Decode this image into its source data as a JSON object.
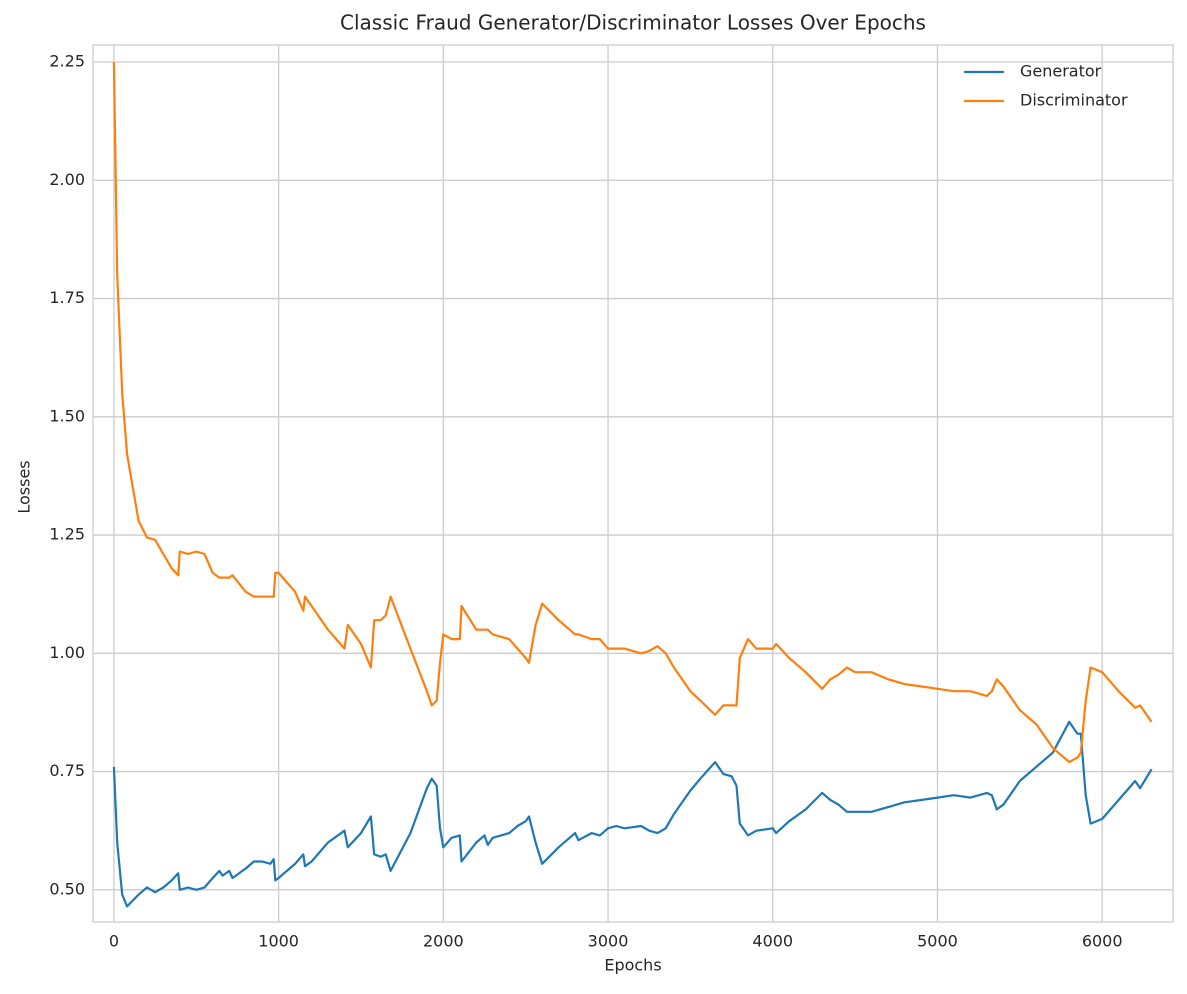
{
  "chart_data": {
    "type": "line",
    "title": "Classic Fraud Generator/Discriminator Losses Over Epochs",
    "x_label": "Epochs",
    "y_label": "Losses",
    "x": [
      0,
      20,
      50,
      80,
      150,
      200,
      250,
      300,
      350,
      390,
      400,
      450,
      500,
      550,
      600,
      640,
      660,
      700,
      720,
      800,
      850,
      900,
      950,
      970,
      980,
      1000,
      1100,
      1150,
      1160,
      1200,
      1300,
      1400,
      1420,
      1500,
      1560,
      1580,
      1620,
      1650,
      1680,
      1800,
      1900,
      1930,
      1960,
      1980,
      2000,
      2050,
      2100,
      2110,
      2200,
      2250,
      2270,
      2300,
      2400,
      2450,
      2500,
      2520,
      2560,
      2600,
      2700,
      2800,
      2820,
      2900,
      2950,
      3000,
      3050,
      3100,
      3200,
      3250,
      3300,
      3350,
      3400,
      3500,
      3560,
      3650,
      3700,
      3750,
      3780,
      3800,
      3850,
      3900,
      4000,
      4020,
      4100,
      4200,
      4300,
      4350,
      4400,
      4450,
      4500,
      4600,
      4700,
      4800,
      4900,
      5000,
      5100,
      5200,
      5300,
      5330,
      5360,
      5400,
      5500,
      5600,
      5700,
      5800,
      5850,
      5870,
      5900,
      5930,
      6000,
      6100,
      6200,
      6230,
      6300
    ],
    "series": [
      {
        "name": "Generator",
        "color": "#1f77b4",
        "values": [
          0.76,
          0.6,
          0.49,
          0.465,
          0.49,
          0.505,
          0.495,
          0.505,
          0.52,
          0.535,
          0.5,
          0.505,
          0.5,
          0.505,
          0.525,
          0.54,
          0.53,
          0.54,
          0.525,
          0.545,
          0.56,
          0.56,
          0.555,
          0.565,
          0.52,
          0.525,
          0.555,
          0.575,
          0.55,
          0.56,
          0.6,
          0.625,
          0.59,
          0.62,
          0.655,
          0.575,
          0.57,
          0.575,
          0.54,
          0.62,
          0.715,
          0.735,
          0.72,
          0.63,
          0.59,
          0.61,
          0.615,
          0.56,
          0.6,
          0.615,
          0.595,
          0.61,
          0.62,
          0.635,
          0.645,
          0.655,
          0.6,
          0.555,
          0.59,
          0.62,
          0.605,
          0.62,
          0.615,
          0.63,
          0.635,
          0.63,
          0.635,
          0.625,
          0.62,
          0.63,
          0.66,
          0.71,
          0.735,
          0.77,
          0.745,
          0.74,
          0.72,
          0.64,
          0.615,
          0.625,
          0.63,
          0.62,
          0.645,
          0.67,
          0.705,
          0.69,
          0.68,
          0.665,
          0.665,
          0.665,
          0.675,
          0.685,
          0.69,
          0.695,
          0.7,
          0.695,
          0.705,
          0.7,
          0.67,
          0.68,
          0.73,
          0.76,
          0.79,
          0.855,
          0.83,
          0.83,
          0.7,
          0.64,
          0.65,
          0.69,
          0.73,
          0.715,
          0.755
        ]
      },
      {
        "name": "Discriminator",
        "color": "#ff7f0e",
        "values": [
          2.25,
          1.8,
          1.55,
          1.42,
          1.28,
          1.245,
          1.24,
          1.21,
          1.18,
          1.165,
          1.215,
          1.21,
          1.215,
          1.21,
          1.17,
          1.16,
          1.16,
          1.16,
          1.165,
          1.13,
          1.12,
          1.12,
          1.12,
          1.12,
          1.17,
          1.17,
          1.13,
          1.09,
          1.12,
          1.1,
          1.05,
          1.01,
          1.06,
          1.02,
          0.97,
          1.07,
          1.07,
          1.08,
          1.12,
          1.01,
          0.92,
          0.89,
          0.9,
          0.98,
          1.04,
          1.03,
          1.03,
          1.1,
          1.05,
          1.05,
          1.05,
          1.04,
          1.03,
          1.01,
          0.99,
          0.98,
          1.06,
          1.105,
          1.07,
          1.04,
          1.04,
          1.03,
          1.03,
          1.01,
          1.01,
          1.01,
          1.0,
          1.005,
          1.015,
          1.0,
          0.97,
          0.92,
          0.9,
          0.87,
          0.89,
          0.89,
          0.89,
          0.99,
          1.03,
          1.01,
          1.01,
          1.02,
          0.99,
          0.96,
          0.925,
          0.945,
          0.955,
          0.97,
          0.96,
          0.96,
          0.945,
          0.935,
          0.93,
          0.925,
          0.92,
          0.92,
          0.91,
          0.92,
          0.945,
          0.93,
          0.88,
          0.85,
          0.8,
          0.77,
          0.78,
          0.79,
          0.9,
          0.97,
          0.96,
          0.92,
          0.885,
          0.89,
          0.855
        ]
      }
    ],
    "xlim": [
      -127,
      6430
    ],
    "ylim": [
      0.432,
      2.286
    ],
    "xticks": [
      0,
      1000,
      2000,
      3000,
      4000,
      5000,
      6000
    ],
    "yticks": [
      {
        "value": 0.5,
        "label": "0.50"
      },
      0.75,
      {
        "value": 1.0,
        "label": "1.00"
      },
      1.25,
      {
        "value": 1.5,
        "label": "1.50"
      },
      1.75,
      {
        "value": 2.0,
        "label": "2.00"
      },
      2.25
    ],
    "grid": true,
    "legend": "upper right"
  }
}
